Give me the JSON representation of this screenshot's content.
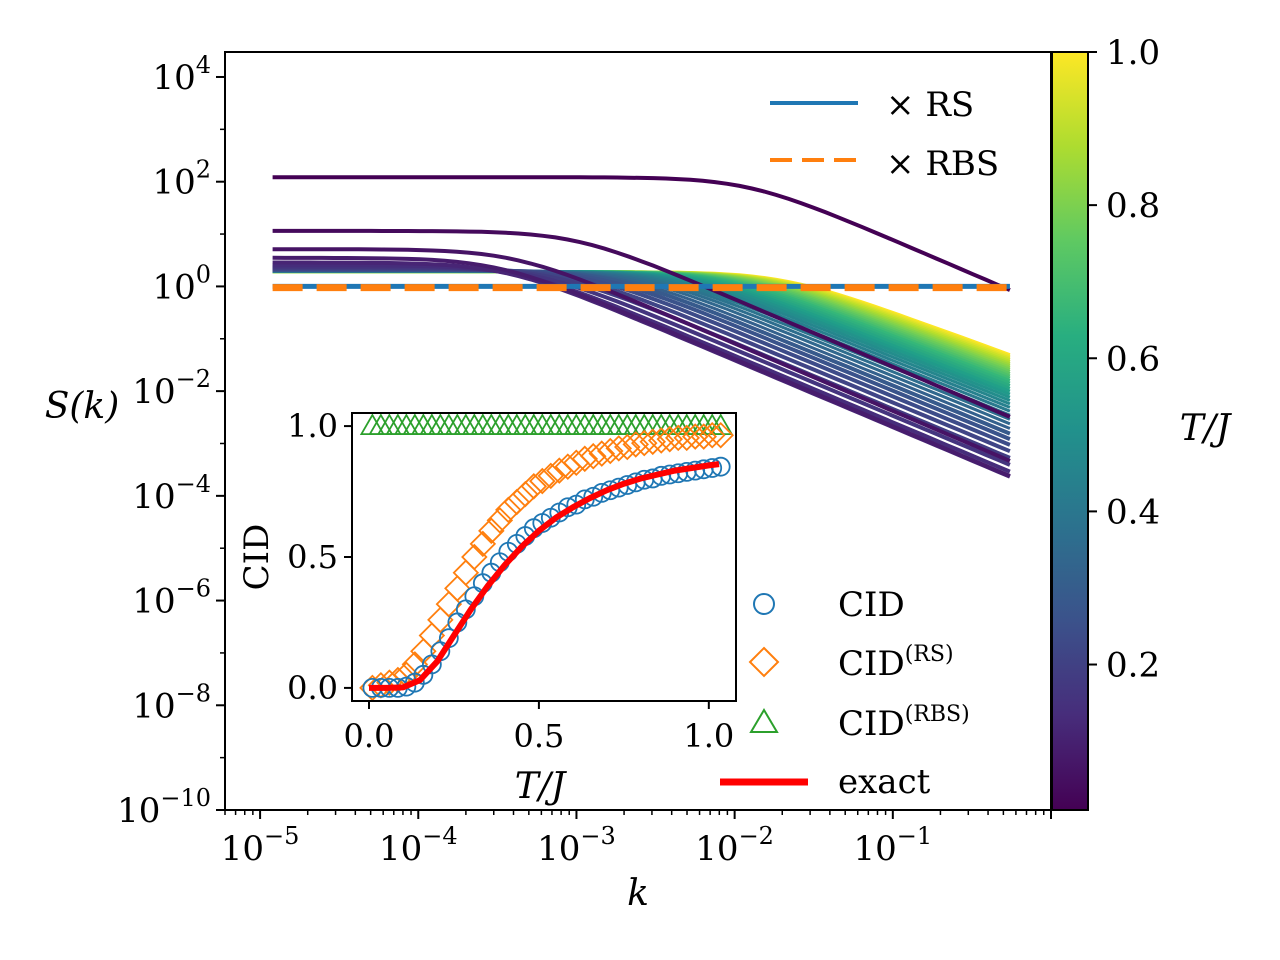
{
  "chart_data": [
    {
      "type": "line",
      "panel": "main",
      "title": "",
      "xlabel": "k",
      "ylabel": "S(k)",
      "xscale": "log",
      "yscale": "log",
      "xlim": [
        6e-06,
        1.0
      ],
      "ylim": [
        1e-10,
        30000.0
      ],
      "x_ticks": [
        {
          "value": 1e-05,
          "base": "10",
          "exp": "−5"
        },
        {
          "value": 0.0001,
          "base": "10",
          "exp": "−4"
        },
        {
          "value": 0.001,
          "base": "10",
          "exp": "−3"
        },
        {
          "value": 0.01,
          "base": "10",
          "exp": "−2"
        },
        {
          "value": 0.1,
          "base": "10",
          "exp": "−1"
        }
      ],
      "y_ticks": [
        {
          "value": 10000.0,
          "base": "10",
          "exp": "4"
        },
        {
          "value": 100.0,
          "base": "10",
          "exp": "2"
        },
        {
          "value": 1,
          "base": "10",
          "exp": "0"
        },
        {
          "value": 0.01,
          "base": "10",
          "exp": "−2"
        },
        {
          "value": 0.0001,
          "base": "10",
          "exp": "−4"
        },
        {
          "value": 1e-06,
          "base": "10",
          "exp": "−6"
        },
        {
          "value": 1e-08,
          "base": "10",
          "exp": "−8"
        },
        {
          "value": 1e-10,
          "base": "10",
          "exp": "−10"
        }
      ],
      "series_family": {
        "description": "S(k) curves for temperatures T/J from 0.01 to 1.0, colored by viridis colormap",
        "T_min": 0.01,
        "T_max": 1.0,
        "count": 40,
        "k_range": [
          1.2e-05,
          0.55
        ]
      },
      "reference_lines": [
        {
          "name": "RS",
          "label_prefix": "×",
          "label": "RS",
          "color": "#1f77b4",
          "style": "solid",
          "value": 1.0
        },
        {
          "name": "RBS",
          "label_prefix": "×",
          "label": "RBS",
          "color": "#ff7f0e",
          "style": "dashed",
          "value": 0.95
        }
      ],
      "colorbar": {
        "label": "T/J",
        "colormap": "viridis",
        "range": [
          0.01,
          1.0
        ],
        "ticks": [
          "0.2",
          "0.4",
          "0.6",
          "0.8",
          "1.0"
        ]
      }
    },
    {
      "type": "scatter",
      "panel": "inset",
      "xlabel": "T/J",
      "ylabel": "CID",
      "xlim": [
        -0.05,
        1.08
      ],
      "ylim": [
        -0.05,
        1.05
      ],
      "x_ticks": [
        "0.0",
        "0.5",
        "1.0"
      ],
      "y_ticks": [
        "0.0",
        "0.5",
        "1.0"
      ],
      "x": [
        0.01,
        0.035,
        0.06,
        0.085,
        0.11,
        0.135,
        0.16,
        0.185,
        0.21,
        0.235,
        0.26,
        0.285,
        0.31,
        0.335,
        0.36,
        0.385,
        0.41,
        0.435,
        0.46,
        0.485,
        0.51,
        0.535,
        0.56,
        0.585,
        0.61,
        0.635,
        0.66,
        0.685,
        0.71,
        0.735,
        0.76,
        0.785,
        0.81,
        0.835,
        0.86,
        0.885,
        0.91,
        0.935,
        0.96,
        0.985,
        1.01,
        1.035
      ],
      "series": [
        {
          "name": "CID",
          "marker": "circle",
          "color": "#1f77b4",
          "values": [
            0.0,
            0.0,
            0.0,
            0.0,
            0.005,
            0.02,
            0.05,
            0.09,
            0.14,
            0.19,
            0.25,
            0.3,
            0.35,
            0.4,
            0.44,
            0.48,
            0.52,
            0.55,
            0.58,
            0.61,
            0.63,
            0.65,
            0.67,
            0.69,
            0.7,
            0.72,
            0.73,
            0.745,
            0.755,
            0.765,
            0.775,
            0.785,
            0.795,
            0.8,
            0.81,
            0.815,
            0.82,
            0.825,
            0.83,
            0.835,
            0.84,
            0.845
          ]
        },
        {
          "name": "CID(RS)",
          "label_main": "CID",
          "label_sup": "(RS)",
          "marker": "diamond",
          "color": "#ff7f0e",
          "values": [
            0.0,
            0.01,
            0.02,
            0.03,
            0.05,
            0.09,
            0.14,
            0.2,
            0.26,
            0.32,
            0.38,
            0.44,
            0.5,
            0.55,
            0.6,
            0.64,
            0.68,
            0.71,
            0.74,
            0.77,
            0.79,
            0.81,
            0.83,
            0.845,
            0.86,
            0.875,
            0.885,
            0.895,
            0.905,
            0.915,
            0.92,
            0.93,
            0.935,
            0.94,
            0.945,
            0.95,
            0.955,
            0.955,
            0.96,
            0.96,
            0.965,
            0.965
          ]
        },
        {
          "name": "CID(RBS)",
          "label_main": "CID",
          "label_sup": "(RBS)",
          "marker": "triangle",
          "color": "#2ca02c",
          "values": [
            1.0,
            1.0,
            1.0,
            1.0,
            1.0,
            1.0,
            1.0,
            1.0,
            1.0,
            1.0,
            1.0,
            1.0,
            1.0,
            1.0,
            1.0,
            1.0,
            1.0,
            1.0,
            1.0,
            1.0,
            1.0,
            1.0,
            1.0,
            1.0,
            1.0,
            1.0,
            1.0,
            1.0,
            1.0,
            1.0,
            1.0,
            1.0,
            1.0,
            1.0,
            1.0,
            1.0,
            1.0,
            1.0,
            1.0,
            1.0,
            1.0,
            1.0
          ]
        },
        {
          "name": "exact",
          "marker": "line",
          "color": "#ff0000",
          "x": [
            0.0,
            0.05,
            0.1,
            0.15,
            0.2,
            0.25,
            0.3,
            0.35,
            0.4,
            0.45,
            0.5,
            0.55,
            0.6,
            0.65,
            0.7,
            0.75,
            0.8,
            0.85,
            0.9,
            0.95,
            1.0,
            1.03
          ],
          "values": [
            0.0,
            0.0,
            0.002,
            0.03,
            0.1,
            0.2,
            0.3,
            0.39,
            0.47,
            0.54,
            0.6,
            0.65,
            0.69,
            0.725,
            0.755,
            0.78,
            0.8,
            0.815,
            0.83,
            0.84,
            0.85,
            0.855
          ]
        }
      ]
    }
  ]
}
